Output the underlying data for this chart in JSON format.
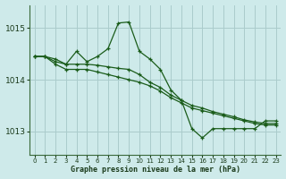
{
  "title": "Graphe pression niveau de la mer (hPa)",
  "bg_color": "#ceeaea",
  "grid_color": "#aacccc",
  "line_color": "#1a5c1a",
  "xlim": [
    -0.5,
    23.5
  ],
  "ylim": [
    1012.55,
    1015.45
  ],
  "yticks": [
    1013,
    1014,
    1015
  ],
  "xticks": [
    0,
    1,
    2,
    3,
    4,
    5,
    6,
    7,
    8,
    9,
    10,
    11,
    12,
    13,
    14,
    15,
    16,
    17,
    18,
    19,
    20,
    21,
    22,
    23
  ],
  "series1": [
    1014.45,
    1014.45,
    1014.4,
    1014.3,
    1014.55,
    1014.35,
    1014.45,
    1014.6,
    1015.1,
    1015.12,
    1014.55,
    1014.4,
    1014.2,
    1013.8,
    1013.6,
    1013.05,
    1012.87,
    1013.05,
    1013.05,
    1013.05,
    1013.05,
    1013.05,
    1013.2,
    1013.2
  ],
  "series2": [
    1014.45,
    1014.45,
    1014.35,
    1014.3,
    1014.3,
    1014.3,
    1014.28,
    1014.25,
    1014.22,
    1014.2,
    1014.1,
    1013.95,
    1013.85,
    1013.7,
    1013.6,
    1013.5,
    1013.45,
    1013.38,
    1013.33,
    1013.28,
    1013.22,
    1013.18,
    1013.15,
    1013.15
  ],
  "series3": [
    1014.45,
    1014.45,
    1014.3,
    1014.2,
    1014.2,
    1014.2,
    1014.15,
    1014.1,
    1014.05,
    1014.0,
    1013.95,
    1013.88,
    1013.78,
    1013.65,
    1013.55,
    1013.45,
    1013.4,
    1013.35,
    1013.3,
    1013.25,
    1013.2,
    1013.15,
    1013.12,
    1013.12
  ]
}
